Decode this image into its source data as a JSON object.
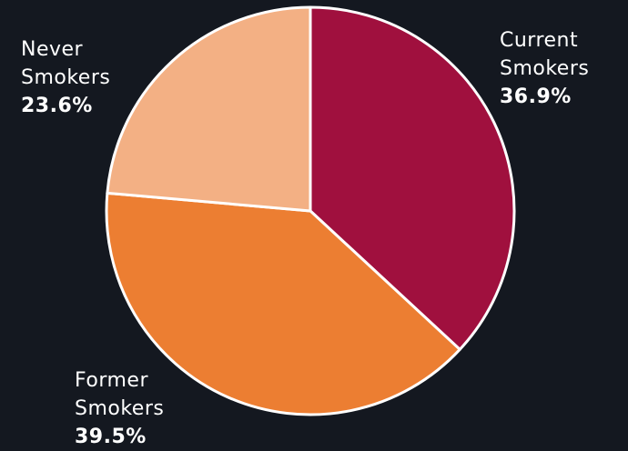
{
  "chart_data": {
    "type": "pie",
    "start_angle": "12 o'clock",
    "direction": "clockwise",
    "slice_border_color": "#ffffff",
    "background_color": "#141820",
    "slices": [
      {
        "name_line1": "Current",
        "name_line2": "Smokers",
        "value": 36.9,
        "label": "36.9%",
        "color": "#A0103E"
      },
      {
        "name_line1": "Former",
        "name_line2": "Smokers",
        "value": 39.5,
        "label": "39.5%",
        "color": "#EC7E32"
      },
      {
        "name_line1": "Never",
        "name_line2": "Smokers",
        "value": 23.6,
        "label": "23.6%",
        "color": "#F3B084"
      }
    ]
  }
}
